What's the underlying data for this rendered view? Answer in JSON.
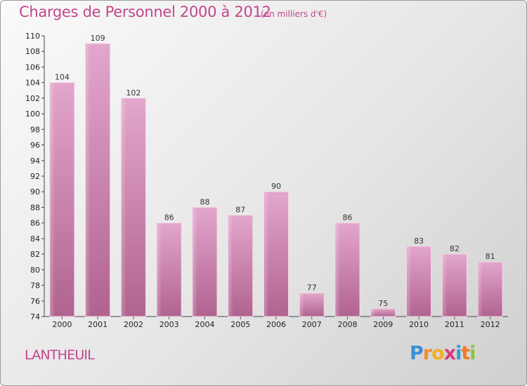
{
  "chart_data": {
    "type": "bar",
    "title": "Charges de Personnel 2000 à 2012",
    "subtitle": "(en milliers d'€)",
    "xlabel": "",
    "ylabel": "",
    "categories": [
      "2000",
      "2001",
      "2002",
      "2003",
      "2004",
      "2005",
      "2006",
      "2007",
      "2008",
      "2009",
      "2010",
      "2011",
      "2012"
    ],
    "values": [
      104,
      109,
      102,
      86,
      88,
      87,
      90,
      77,
      86,
      75,
      83,
      82,
      81
    ],
    "data_labels": [
      "104",
      "109",
      "102",
      "86",
      "88",
      "87",
      "90",
      "77",
      "86",
      "75",
      "83",
      "82",
      "81"
    ],
    "ylim": [
      74,
      110
    ],
    "yticks": [
      74,
      76,
      78,
      80,
      82,
      84,
      86,
      88,
      90,
      92,
      94,
      96,
      98,
      100,
      102,
      104,
      106,
      108,
      110
    ],
    "ytick_labels": [
      "74",
      "76",
      "78",
      "80",
      "82",
      "84",
      "86",
      "88",
      "90",
      "92",
      "94",
      "96",
      "98",
      "100",
      "102",
      "104",
      "106",
      "108",
      "110"
    ],
    "grid": false,
    "legend": "none",
    "bar_color": "#d47fb4"
  },
  "place": "LANTHEUIL",
  "brand": {
    "letters": [
      "P",
      "r",
      "o",
      "x",
      "i",
      "t",
      "i"
    ],
    "colors": [
      "#3a8fd8",
      "#f28c28",
      "#f2b01e",
      "#d63a7a",
      "#2e9fd6",
      "#f07a2a",
      "#8cc43f"
    ]
  }
}
